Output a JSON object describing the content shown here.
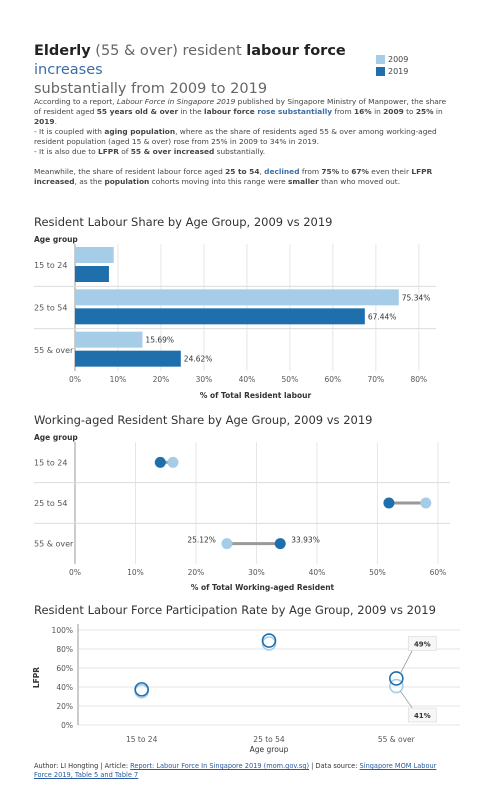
{
  "title": {
    "part1": "Elderly",
    "part2": " (55 & over) resident ",
    "part3": "labour force",
    "part4": " increases",
    "line2": "substantially from 2009 to 2019"
  },
  "legend": {
    "items": [
      {
        "label": "2009",
        "color": "#a6cde8"
      },
      {
        "label": "2019",
        "color": "#1f6fad"
      }
    ]
  },
  "description": {
    "p1": [
      {
        "t": "According to a report, ",
        "s": "n"
      },
      {
        "t": "Labour Force in Singapore 2019",
        "s": "i"
      },
      {
        "t": " published by Singapore Ministry of Manpower, the share of resident aged ",
        "s": "n"
      },
      {
        "t": "55 years old & over",
        "s": "b"
      },
      {
        "t": " in the ",
        "s": "n"
      },
      {
        "t": "labour force",
        "s": "b"
      },
      {
        "t": " rose substantially",
        "s": "hb"
      },
      {
        "t": " from ",
        "s": "n"
      },
      {
        "t": "16%",
        "s": "b"
      },
      {
        "t": " in ",
        "s": "n"
      },
      {
        "t": "2009",
        "s": "b"
      },
      {
        "t": " to ",
        "s": "n"
      },
      {
        "t": "25%",
        "s": "b"
      },
      {
        "t": " in ",
        "s": "n"
      },
      {
        "t": "2019",
        "s": "b"
      },
      {
        "t": ".",
        "s": "n"
      }
    ],
    "p2": [
      {
        "t": "- It is coupled with ",
        "s": "n"
      },
      {
        "t": "aging population",
        "s": "b"
      },
      {
        "t": ", where as the share of residents aged 55 & over among working-aged resident population (aged 15 & over) rose from 25% in 2009 to 34% in 2019.",
        "s": "n"
      }
    ],
    "p3": [
      {
        "t": "- It is also due to ",
        "s": "n"
      },
      {
        "t": "LFPR",
        "s": "b"
      },
      {
        "t": " of ",
        "s": "n"
      },
      {
        "t": "55 & over increased",
        "s": "b"
      },
      {
        "t": " substantially.",
        "s": "n"
      }
    ],
    "p4": [
      {
        "t": "Meanwhile, the share of resident labour force aged ",
        "s": "n"
      },
      {
        "t": "25 to 54",
        "s": "b"
      },
      {
        "t": ", ",
        "s": "n"
      },
      {
        "t": "declined",
        "s": "hb"
      },
      {
        "t": " from ",
        "s": "n"
      },
      {
        "t": "75%",
        "s": "b"
      },
      {
        "t": " to ",
        "s": "n"
      },
      {
        "t": "67%",
        "s": "b"
      },
      {
        "t": " even their ",
        "s": "n"
      },
      {
        "t": "LFPR increased",
        "s": "b"
      },
      {
        "t": ", as the ",
        "s": "n"
      },
      {
        "t": "population",
        "s": "b"
      },
      {
        "t": " cohorts moving into this range were ",
        "s": "n"
      },
      {
        "t": "smaller",
        "s": "b"
      },
      {
        "t": " than who moved out.",
        "s": "n"
      }
    ]
  },
  "chart_data": [
    {
      "type": "bar",
      "title": "Resident Labour Share by Age Group, 2009 vs 2019",
      "y_caption": "Age group",
      "xlabel": "% of Total Resident labour",
      "categories": [
        "15 to 24",
        "25 to 54",
        "55 & over"
      ],
      "series": [
        {
          "name": "2009",
          "color": "#a6cde8",
          "values": [
            9.0,
            75.34,
            15.69
          ]
        },
        {
          "name": "2019",
          "color": "#1f6fad",
          "values": [
            7.9,
            67.44,
            24.62
          ]
        }
      ],
      "data_labels": [
        [
          "",
          ""
        ],
        [
          "75.34%",
          "67.44%"
        ],
        [
          "15.69%",
          "24.62%"
        ]
      ],
      "xlim": [
        0,
        84
      ],
      "ticks": [
        0,
        10,
        20,
        30,
        40,
        50,
        60,
        70,
        80
      ],
      "tick_labels": [
        "0%",
        "10%",
        "20%",
        "30%",
        "40%",
        "50%",
        "60%",
        "70%",
        "80%"
      ]
    },
    {
      "type": "dumbbell",
      "title": "Working-aged Resident Share by Age Group, 2009 vs 2019",
      "y_caption": "Age group",
      "xlabel": "% of Total Working-aged Resident",
      "categories": [
        "15 to 24",
        "25 to 54",
        "55 & over"
      ],
      "series": [
        {
          "name": "2009",
          "color": "#a6cde8",
          "values": [
            16.2,
            58.0,
            25.12
          ]
        },
        {
          "name": "2019",
          "color": "#1f6fad",
          "values": [
            14.1,
            51.9,
            33.93
          ]
        }
      ],
      "data_labels": [
        [
          "",
          ""
        ],
        [
          "",
          ""
        ],
        [
          "25.12%",
          "33.93%"
        ]
      ],
      "xlim": [
        0,
        62
      ],
      "ticks": [
        0,
        10,
        20,
        30,
        40,
        50,
        60
      ],
      "tick_labels": [
        "0%",
        "10%",
        "20%",
        "30%",
        "40%",
        "50%",
        "60%"
      ]
    },
    {
      "type": "scatter",
      "title": "Resident Labour Force Participation Rate by Age Group, 2009 vs 2019",
      "xlabel": "Age group",
      "ylabel": "LFPR",
      "categories": [
        "15 to 24",
        "25 to 54",
        "55 & over"
      ],
      "series": [
        {
          "name": "2009",
          "color": "#a6cde8",
          "values": [
            35.5,
            85.8,
            41
          ]
        },
        {
          "name": "2019",
          "color": "#1f6fad",
          "values": [
            37.5,
            88.9,
            49
          ]
        }
      ],
      "annotations": [
        {
          "category": "55 & over",
          "series": "2019",
          "text": "49%"
        },
        {
          "category": "55 & over",
          "series": "2009",
          "text": "41%"
        }
      ],
      "ylim": [
        0,
        100
      ],
      "ticks": [
        0,
        20,
        40,
        60,
        80,
        100
      ],
      "tick_labels": [
        "0%",
        "20%",
        "40%",
        "60%",
        "80%",
        "100%"
      ]
    }
  ],
  "footer": {
    "author": "Author: LI Hongting | Article: ",
    "article_link": "Report: Labour Force In Singapore 2019 (mom.gov.sg)",
    "sep": " | Data source: ",
    "source_link": "Singapore MOM Labour Force 2019, Table 5 and Table 7"
  }
}
